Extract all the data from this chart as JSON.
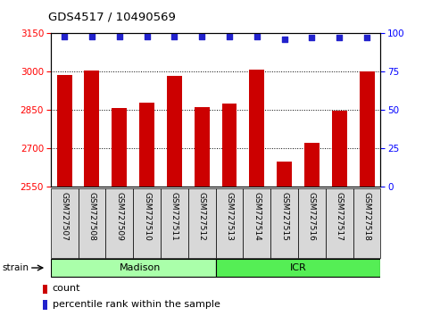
{
  "title": "GDS4517 / 10490569",
  "samples": [
    "GSM727507",
    "GSM727508",
    "GSM727509",
    "GSM727510",
    "GSM727511",
    "GSM727512",
    "GSM727513",
    "GSM727514",
    "GSM727515",
    "GSM727516",
    "GSM727517",
    "GSM727518"
  ],
  "counts": [
    2985,
    3005,
    2858,
    2878,
    2984,
    2862,
    2873,
    3007,
    2648,
    2720,
    2845,
    3002
  ],
  "percentile_ranks": [
    98,
    98,
    98,
    98,
    98,
    98,
    98,
    98,
    96,
    97,
    97,
    97
  ],
  "ylim_left": [
    2550,
    3150
  ],
  "ylim_right": [
    0,
    100
  ],
  "yticks_left": [
    2550,
    2700,
    2850,
    3000,
    3150
  ],
  "yticks_right": [
    0,
    25,
    50,
    75,
    100
  ],
  "bar_color": "#cc0000",
  "dot_color": "#2222cc",
  "madison_color": "#aaffaa",
  "icr_color": "#55ee55",
  "bg_color": "#d8d8d8",
  "legend_count_label": "count",
  "legend_percentile_label": "percentile rank within the sample",
  "madison_count": 6,
  "icr_count": 6
}
